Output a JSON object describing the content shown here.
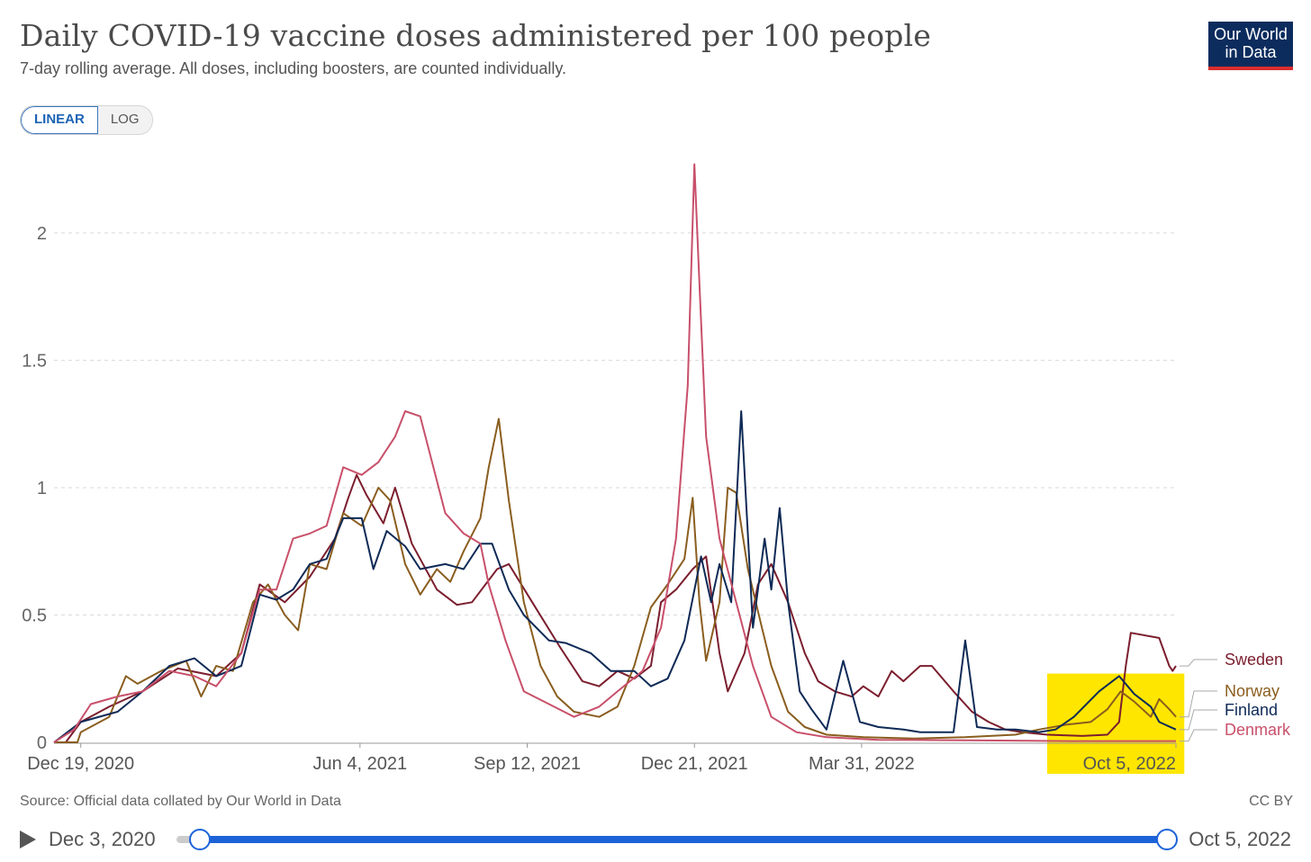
{
  "header": {
    "title": "Daily COVID-19 vaccine doses administered per 100 people",
    "subtitle": "7-day rolling average. All doses, including boosters, are counted individually.",
    "logo_line1": "Our World",
    "logo_line2": "in Data"
  },
  "scale_toggle": {
    "linear_label": "LINEAR",
    "log_label": "LOG",
    "selected": "LINEAR"
  },
  "footer": {
    "source": "Source: Official data collated by Our World in Data",
    "license": "CC BY"
  },
  "timeline": {
    "start_label": "Dec 3, 2020",
    "end_label": "Oct 5, 2022"
  },
  "highlight_color": "#ffe600",
  "chart_data": {
    "type": "line",
    "x_axis": {
      "type": "date",
      "range": [
        "2020-12-03",
        "2022-10-05"
      ],
      "ticks": [
        {
          "date": "2020-12-19",
          "label": "Dec 19, 2020"
        },
        {
          "date": "2021-06-04",
          "label": "Jun 4, 2021"
        },
        {
          "date": "2021-09-12",
          "label": "Sep 12, 2021"
        },
        {
          "date": "2021-12-21",
          "label": "Dec 21, 2021"
        },
        {
          "date": "2022-03-31",
          "label": "Mar 31, 2022"
        },
        {
          "date": "2022-10-05",
          "label": "Oct 5, 2022"
        }
      ]
    },
    "y_axis": {
      "range": [
        0,
        2.3
      ],
      "ticks": [
        0,
        0.5,
        1,
        1.5,
        2
      ],
      "tick_labels": [
        "0",
        "0.5",
        "1",
        "1.5",
        "2"
      ],
      "grid": true
    },
    "highlight_range": {
      "start": "2022-07-20",
      "end": "2022-10-10",
      "y_max": 0.27
    },
    "series": [
      {
        "name": "Sweden",
        "color": "#7b1e2e",
        "points": [
          [
            "2020-12-03",
            0
          ],
          [
            "2020-12-10",
            0
          ],
          [
            "2020-12-19",
            0.08
          ],
          [
            "2021-01-05",
            0.14
          ],
          [
            "2021-01-25",
            0.2
          ],
          [
            "2021-02-15",
            0.29
          ],
          [
            "2021-03-10",
            0.26
          ],
          [
            "2021-03-25",
            0.35
          ],
          [
            "2021-04-05",
            0.62
          ],
          [
            "2021-04-20",
            0.55
          ],
          [
            "2021-05-05",
            0.65
          ],
          [
            "2021-05-20",
            0.8
          ],
          [
            "2021-05-28",
            0.96
          ],
          [
            "2021-06-02",
            1.05
          ],
          [
            "2021-06-08",
            0.97
          ],
          [
            "2021-06-18",
            0.86
          ],
          [
            "2021-06-25",
            1.0
          ],
          [
            "2021-07-05",
            0.78
          ],
          [
            "2021-07-20",
            0.6
          ],
          [
            "2021-08-01",
            0.54
          ],
          [
            "2021-08-10",
            0.55
          ],
          [
            "2021-08-25",
            0.68
          ],
          [
            "2021-09-01",
            0.7
          ],
          [
            "2021-09-15",
            0.55
          ],
          [
            "2021-10-01",
            0.38
          ],
          [
            "2021-10-15",
            0.24
          ],
          [
            "2021-10-25",
            0.22
          ],
          [
            "2021-11-05",
            0.28
          ],
          [
            "2021-11-15",
            0.25
          ],
          [
            "2021-11-25",
            0.3
          ],
          [
            "2021-12-01",
            0.55
          ],
          [
            "2021-12-10",
            0.6
          ],
          [
            "2021-12-20",
            0.68
          ],
          [
            "2021-12-28",
            0.73
          ],
          [
            "2022-01-05",
            0.35
          ],
          [
            "2022-01-10",
            0.2
          ],
          [
            "2022-01-20",
            0.35
          ],
          [
            "2022-01-28",
            0.62
          ],
          [
            "2022-02-05",
            0.7
          ],
          [
            "2022-02-15",
            0.55
          ],
          [
            "2022-02-25",
            0.35
          ],
          [
            "2022-03-05",
            0.24
          ],
          [
            "2022-03-15",
            0.2
          ],
          [
            "2022-03-25",
            0.18
          ],
          [
            "2022-04-01",
            0.22
          ],
          [
            "2022-04-10",
            0.18
          ],
          [
            "2022-04-18",
            0.28
          ],
          [
            "2022-04-25",
            0.24
          ],
          [
            "2022-05-05",
            0.3
          ],
          [
            "2022-05-12",
            0.3
          ],
          [
            "2022-05-25",
            0.2
          ],
          [
            "2022-06-05",
            0.12
          ],
          [
            "2022-06-15",
            0.08
          ],
          [
            "2022-06-25",
            0.05
          ],
          [
            "2022-07-05",
            0.04
          ],
          [
            "2022-07-20",
            0.03
          ],
          [
            "2022-08-10",
            0.025
          ],
          [
            "2022-08-25",
            0.03
          ],
          [
            "2022-09-01",
            0.08
          ],
          [
            "2022-09-05",
            0.3
          ],
          [
            "2022-09-08",
            0.43
          ],
          [
            "2022-09-25",
            0.41
          ],
          [
            "2022-10-01",
            0.3
          ],
          [
            "2022-10-03",
            0.28
          ],
          [
            "2022-10-05",
            0.3
          ]
        ]
      },
      {
        "name": "Norway",
        "color": "#8a5e1f",
        "points": [
          [
            "2020-12-03",
            0
          ],
          [
            "2020-12-17",
            0
          ],
          [
            "2020-12-19",
            0.04
          ],
          [
            "2021-01-05",
            0.1
          ],
          [
            "2021-01-15",
            0.26
          ],
          [
            "2021-01-22",
            0.23
          ],
          [
            "2021-02-05",
            0.28
          ],
          [
            "2021-02-20",
            0.32
          ],
          [
            "2021-03-01",
            0.18
          ],
          [
            "2021-03-10",
            0.3
          ],
          [
            "2021-03-20",
            0.28
          ],
          [
            "2021-04-01",
            0.55
          ],
          [
            "2021-04-10",
            0.62
          ],
          [
            "2021-04-20",
            0.5
          ],
          [
            "2021-04-28",
            0.44
          ],
          [
            "2021-05-05",
            0.7
          ],
          [
            "2021-05-15",
            0.68
          ],
          [
            "2021-05-25",
            0.9
          ],
          [
            "2021-06-05",
            0.85
          ],
          [
            "2021-06-15",
            1.0
          ],
          [
            "2021-06-22",
            0.95
          ],
          [
            "2021-07-01",
            0.7
          ],
          [
            "2021-07-10",
            0.58
          ],
          [
            "2021-07-20",
            0.68
          ],
          [
            "2021-07-28",
            0.63
          ],
          [
            "2021-08-05",
            0.75
          ],
          [
            "2021-08-15",
            0.88
          ],
          [
            "2021-08-20",
            1.08
          ],
          [
            "2021-08-26",
            1.27
          ],
          [
            "2021-09-01",
            0.95
          ],
          [
            "2021-09-10",
            0.55
          ],
          [
            "2021-09-20",
            0.3
          ],
          [
            "2021-09-30",
            0.18
          ],
          [
            "2021-10-10",
            0.12
          ],
          [
            "2021-10-25",
            0.1
          ],
          [
            "2021-11-05",
            0.14
          ],
          [
            "2021-11-15",
            0.3
          ],
          [
            "2021-11-25",
            0.53
          ],
          [
            "2021-12-05",
            0.62
          ],
          [
            "2021-12-15",
            0.72
          ],
          [
            "2021-12-20",
            0.96
          ],
          [
            "2021-12-24",
            0.55
          ],
          [
            "2021-12-28",
            0.32
          ],
          [
            "2022-01-05",
            0.55
          ],
          [
            "2022-01-10",
            1.0
          ],
          [
            "2022-01-15",
            0.98
          ],
          [
            "2022-01-22",
            0.68
          ],
          [
            "2022-01-30",
            0.46
          ],
          [
            "2022-02-05",
            0.3
          ],
          [
            "2022-02-15",
            0.12
          ],
          [
            "2022-02-25",
            0.06
          ],
          [
            "2022-03-10",
            0.03
          ],
          [
            "2022-04-01",
            0.02
          ],
          [
            "2022-05-01",
            0.015
          ],
          [
            "2022-06-01",
            0.02
          ],
          [
            "2022-07-01",
            0.03
          ],
          [
            "2022-07-15",
            0.05
          ],
          [
            "2022-08-01",
            0.07
          ],
          [
            "2022-08-15",
            0.08
          ],
          [
            "2022-08-25",
            0.13
          ],
          [
            "2022-09-02",
            0.2
          ],
          [
            "2022-09-10",
            0.16
          ],
          [
            "2022-09-20",
            0.1
          ],
          [
            "2022-09-25",
            0.17
          ],
          [
            "2022-10-01",
            0.13
          ],
          [
            "2022-10-05",
            0.1
          ]
        ]
      },
      {
        "name": "Finland",
        "color": "#0e2a56",
        "points": [
          [
            "2020-12-03",
            0
          ],
          [
            "2020-12-19",
            0.08
          ],
          [
            "2021-01-10",
            0.12
          ],
          [
            "2021-01-25",
            0.2
          ],
          [
            "2021-02-10",
            0.3
          ],
          [
            "2021-02-25",
            0.33
          ],
          [
            "2021-03-10",
            0.26
          ],
          [
            "2021-03-25",
            0.3
          ],
          [
            "2021-04-05",
            0.58
          ],
          [
            "2021-04-15",
            0.56
          ],
          [
            "2021-04-25",
            0.6
          ],
          [
            "2021-05-05",
            0.7
          ],
          [
            "2021-05-15",
            0.72
          ],
          [
            "2021-05-25",
            0.88
          ],
          [
            "2021-06-05",
            0.88
          ],
          [
            "2021-06-12",
            0.68
          ],
          [
            "2021-06-20",
            0.83
          ],
          [
            "2021-07-01",
            0.77
          ],
          [
            "2021-07-10",
            0.68
          ],
          [
            "2021-07-25",
            0.7
          ],
          [
            "2021-08-05",
            0.68
          ],
          [
            "2021-08-15",
            0.78
          ],
          [
            "2021-08-22",
            0.78
          ],
          [
            "2021-09-01",
            0.6
          ],
          [
            "2021-09-10",
            0.5
          ],
          [
            "2021-09-25",
            0.4
          ],
          [
            "2021-10-05",
            0.39
          ],
          [
            "2021-10-20",
            0.35
          ],
          [
            "2021-11-01",
            0.28
          ],
          [
            "2021-11-15",
            0.28
          ],
          [
            "2021-11-25",
            0.22
          ],
          [
            "2021-12-05",
            0.25
          ],
          [
            "2021-12-15",
            0.4
          ],
          [
            "2021-12-25",
            0.73
          ],
          [
            "2021-12-31",
            0.55
          ],
          [
            "2022-01-05",
            0.7
          ],
          [
            "2022-01-12",
            0.55
          ],
          [
            "2022-01-18",
            1.3
          ],
          [
            "2022-01-25",
            0.45
          ],
          [
            "2022-02-01",
            0.8
          ],
          [
            "2022-02-05",
            0.6
          ],
          [
            "2022-02-10",
            0.92
          ],
          [
            "2022-02-15",
            0.55
          ],
          [
            "2022-02-22",
            0.2
          ],
          [
            "2022-03-01",
            0.13
          ],
          [
            "2022-03-10",
            0.05
          ],
          [
            "2022-03-20",
            0.32
          ],
          [
            "2022-03-30",
            0.08
          ],
          [
            "2022-04-10",
            0.06
          ],
          [
            "2022-04-25",
            0.05
          ],
          [
            "2022-05-05",
            0.04
          ],
          [
            "2022-05-25",
            0.04
          ],
          [
            "2022-06-01",
            0.4
          ],
          [
            "2022-06-08",
            0.06
          ],
          [
            "2022-06-20",
            0.05
          ],
          [
            "2022-07-01",
            0.05
          ],
          [
            "2022-07-15",
            0.04
          ],
          [
            "2022-07-25",
            0.05
          ],
          [
            "2022-08-05",
            0.1
          ],
          [
            "2022-08-20",
            0.2
          ],
          [
            "2022-09-01",
            0.26
          ],
          [
            "2022-09-10",
            0.19
          ],
          [
            "2022-09-20",
            0.14
          ],
          [
            "2022-09-25",
            0.08
          ],
          [
            "2022-10-05",
            0.05
          ]
        ]
      },
      {
        "name": "Denmark",
        "color": "#c8506a",
        "points": [
          [
            "2020-12-03",
            0
          ],
          [
            "2020-12-15",
            0.05
          ],
          [
            "2020-12-25",
            0.15
          ],
          [
            "2021-01-10",
            0.18
          ],
          [
            "2021-01-25",
            0.2
          ],
          [
            "2021-02-10",
            0.28
          ],
          [
            "2021-02-25",
            0.26
          ],
          [
            "2021-03-10",
            0.22
          ],
          [
            "2021-03-25",
            0.35
          ],
          [
            "2021-04-05",
            0.6
          ],
          [
            "2021-04-15",
            0.6
          ],
          [
            "2021-04-25",
            0.8
          ],
          [
            "2021-05-05",
            0.82
          ],
          [
            "2021-05-15",
            0.85
          ],
          [
            "2021-05-25",
            1.08
          ],
          [
            "2021-06-05",
            1.05
          ],
          [
            "2021-06-15",
            1.1
          ],
          [
            "2021-06-25",
            1.2
          ],
          [
            "2021-07-01",
            1.3
          ],
          [
            "2021-07-10",
            1.28
          ],
          [
            "2021-07-25",
            0.9
          ],
          [
            "2021-08-05",
            0.82
          ],
          [
            "2021-08-15",
            0.78
          ],
          [
            "2021-08-20",
            0.62
          ],
          [
            "2021-08-30",
            0.4
          ],
          [
            "2021-09-10",
            0.2
          ],
          [
            "2021-09-25",
            0.15
          ],
          [
            "2021-10-10",
            0.1
          ],
          [
            "2021-10-25",
            0.14
          ],
          [
            "2021-11-05",
            0.2
          ],
          [
            "2021-11-20",
            0.28
          ],
          [
            "2021-12-01",
            0.45
          ],
          [
            "2021-12-10",
            0.8
          ],
          [
            "2021-12-17",
            1.4
          ],
          [
            "2021-12-21",
            2.27
          ],
          [
            "2021-12-24",
            1.8
          ],
          [
            "2021-12-28",
            1.2
          ],
          [
            "2022-01-05",
            0.8
          ],
          [
            "2022-01-15",
            0.55
          ],
          [
            "2022-01-25",
            0.3
          ],
          [
            "2022-02-05",
            0.1
          ],
          [
            "2022-02-20",
            0.04
          ],
          [
            "2022-03-10",
            0.02
          ],
          [
            "2022-04-10",
            0.01
          ],
          [
            "2022-06-01",
            0.008
          ],
          [
            "2022-08-01",
            0.005
          ],
          [
            "2022-10-05",
            0.005
          ]
        ]
      }
    ]
  }
}
